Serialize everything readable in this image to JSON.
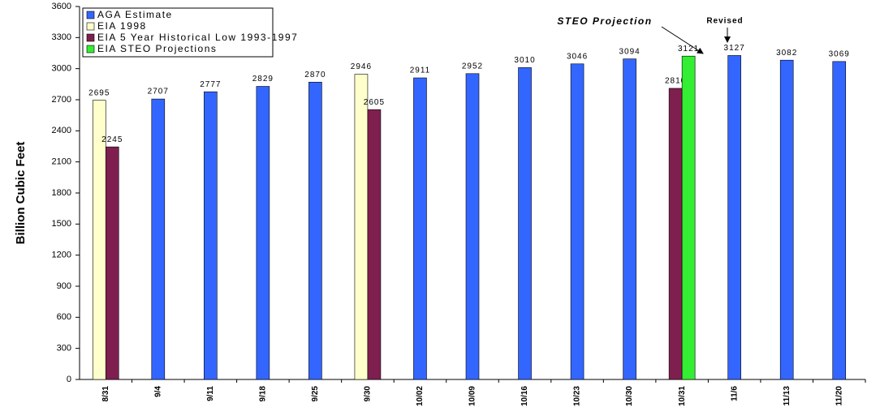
{
  "chart_data": {
    "type": "bar",
    "y_label": "Billion Cubic Feet",
    "categories": [
      "8/31",
      "9/4",
      "9/11",
      "9/18",
      "9/25",
      "9/30",
      "10/02",
      "10/09",
      "10/16",
      "10/23",
      "10/30",
      "10/31",
      "11/6",
      "11/13",
      "11/20"
    ],
    "series": [
      {
        "name": "AGA Estimate",
        "color": "#3366ff",
        "values": [
          null,
          2707,
          2777,
          2829,
          2870,
          null,
          2911,
          2952,
          3010,
          3046,
          3094,
          null,
          3127,
          3082,
          3069
        ]
      },
      {
        "name": "EIA 1998",
        "color": "#ffffcc",
        "values": [
          2695,
          null,
          null,
          null,
          null,
          2946,
          null,
          null,
          null,
          null,
          null,
          null,
          null,
          null,
          null
        ]
      },
      {
        "name": "EIA 5 Year Historical Low 1993-1997",
        "color": "#7f1f4f",
        "values": [
          2245,
          null,
          null,
          null,
          null,
          2605,
          null,
          null,
          null,
          null,
          null,
          2810,
          null,
          null,
          null
        ]
      },
      {
        "name": "EIA STEO Projections",
        "color": "#33ee33",
        "values": [
          null,
          null,
          null,
          null,
          null,
          null,
          null,
          null,
          null,
          null,
          null,
          3121,
          null,
          null,
          null
        ]
      }
    ],
    "ylim": [
      0,
      3600
    ],
    "yticks": [
      0,
      300,
      600,
      900,
      1200,
      1500,
      1800,
      2100,
      2400,
      2700,
      3000,
      3300,
      3600
    ],
    "annotations": [
      "STEO Projection",
      "Revised"
    ]
  }
}
